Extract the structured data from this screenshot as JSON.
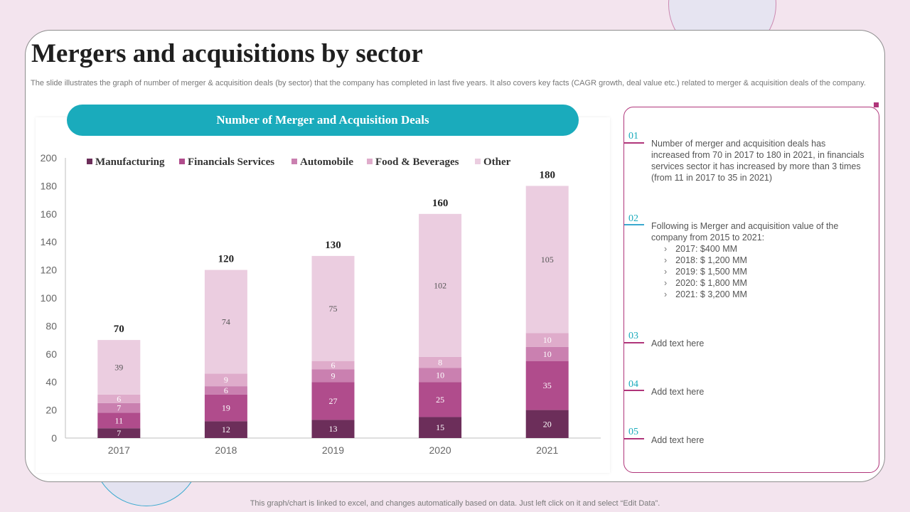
{
  "title": "Mergers and acquisitions by sector",
  "subtitle": "The slide illustrates the graph of number of merger & acquisition deals (by sector) that the company has completed in last five years. It also covers key facts (CAGR growth, deal value etc.) related to merger & acquisition deals of the company.",
  "chart_banner": "Number of Merger and Acquisition Deals",
  "chart_data": {
    "type": "bar",
    "stacked": true,
    "categories": [
      "2017",
      "2018",
      "2019",
      "2020",
      "2021"
    ],
    "series": [
      {
        "name": "Manufacturing",
        "values": [
          7,
          12,
          13,
          15,
          20
        ],
        "color": "#6c2e5a"
      },
      {
        "name": "Financials Services",
        "values": [
          11,
          19,
          27,
          25,
          35
        ],
        "color": "#b04c8c"
      },
      {
        "name": "Automobile",
        "values": [
          7,
          6,
          9,
          10,
          10
        ],
        "color": "#ca80b0"
      },
      {
        "name": "Food & Beverages",
        "values": [
          6,
          9,
          6,
          8,
          10
        ],
        "color": "#dfaccb"
      },
      {
        "name": "Other",
        "values": [
          39,
          74,
          75,
          102,
          105
        ],
        "color": "#ebcde0"
      }
    ],
    "totals": [
      70,
      120,
      130,
      160,
      180
    ],
    "yticks": [
      0,
      20,
      40,
      60,
      80,
      100,
      120,
      140,
      160,
      180,
      200
    ],
    "ylim": [
      0,
      200
    ],
    "legend_position": "top"
  },
  "points": [
    {
      "num": "01",
      "text": "Number of merger and acquisition deals has increased from 70 in 2017 to 180 in 2021, in financials services sector it has increased by more than 3 times (from 11 in 2017 to 35 in 2021)",
      "line_color": "#b0357a",
      "bullets": []
    },
    {
      "num": "02",
      "text": "Following is Merger and acquisition value of the company from 2015 to 2021:",
      "line_color": "#3aa9cf",
      "bullets": [
        "2017: $400 MM",
        "2018: $ 1,200 MM",
        "2019: $ 1,500 MM",
        "2020: $ 1,800 MM",
        "2021: $ 3,200 MM"
      ]
    },
    {
      "num": "03",
      "text": "Add text here",
      "line_color": "#b0357a",
      "bullets": []
    },
    {
      "num": "04",
      "text": "Add text here",
      "line_color": "#b0357a",
      "bullets": []
    },
    {
      "num": "05",
      "text": "Add text here",
      "line_color": "#b0357a",
      "bullets": []
    }
  ],
  "footer": "This graph/chart is linked to excel, and changes automatically based on data. Just left click on it and select “Edit Data”."
}
